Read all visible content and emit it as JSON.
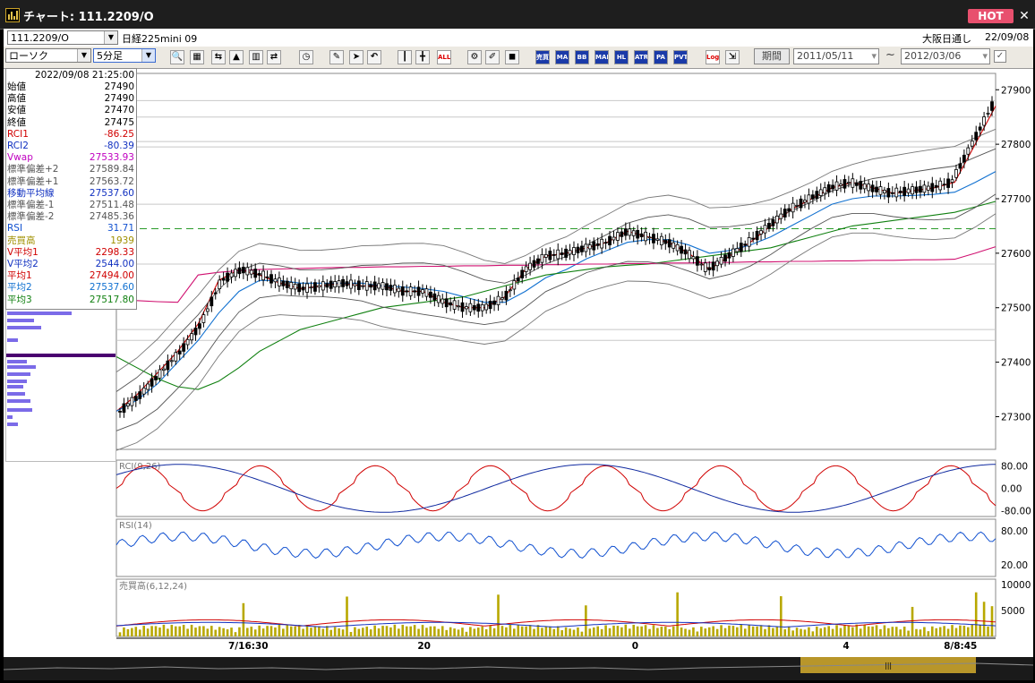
{
  "window": {
    "title": "チャート: 111.2209/O",
    "hot_label": "HOT",
    "close_icon": "close-icon"
  },
  "toolbar1": {
    "symbol_code": "111.2209/O",
    "symbol_name": "日経225mini 09",
    "session": "大阪日通し",
    "date": "22/09/08"
  },
  "toolbar2": {
    "chart_type": "ローソク",
    "interval": "5分足",
    "period_label": "期間",
    "date_from": "2011/05/11",
    "tilde": "~",
    "date_to": "2012/03/06",
    "buttons": [
      {
        "name": "zoom-icon"
      },
      {
        "name": "layout-icon"
      },
      {
        "name": "compare-icon",
        "label": ""
      },
      {
        "name": "chart-icon"
      },
      {
        "name": "bar-chart-icon"
      },
      {
        "name": "shuffle-icon"
      },
      {
        "name": "clock-icon"
      },
      {
        "name": "pencil-icon"
      },
      {
        "name": "cursor-icon"
      },
      {
        "name": "undo-icon"
      },
      {
        "name": "candle-icon"
      },
      {
        "name": "candle2-icon"
      },
      {
        "name": "all-icon",
        "label": "ALL"
      },
      {
        "name": "gear-icon"
      },
      {
        "name": "brush-icon"
      },
      {
        "name": "palette-icon"
      },
      {
        "name": "vol-icon",
        "label": "売買"
      },
      {
        "name": "ma-icon",
        "label": "MA"
      },
      {
        "name": "bb-icon",
        "label": "BB"
      },
      {
        "name": "mae-icon",
        "label": "MAE"
      },
      {
        "name": "hl-icon",
        "label": "HL"
      },
      {
        "name": "atr-icon",
        "label": "ATR"
      },
      {
        "name": "para-icon",
        "label": "PA RA"
      },
      {
        "name": "pvt-icon",
        "label": "PVT"
      },
      {
        "name": "log-icon",
        "label": "Log"
      },
      {
        "name": "export-icon"
      }
    ]
  },
  "info_panel": {
    "timestamp": "2022/09/08  21:25:00",
    "rows": [
      {
        "k": "始値",
        "v": "27490",
        "color": "#000000"
      },
      {
        "k": "高値",
        "v": "27490",
        "color": "#000000"
      },
      {
        "k": "安値",
        "v": "27470",
        "color": "#000000"
      },
      {
        "k": "終値",
        "v": "27475",
        "color": "#000000"
      },
      {
        "k": "RCI1",
        "v": "-86.25",
        "color": "#d00000"
      },
      {
        "k": "RCI2",
        "v": "-80.39",
        "color": "#1030c0"
      },
      {
        "k": "Vwap",
        "v": "27533.93",
        "color": "#c000c0"
      },
      {
        "k": "標準偏差+2",
        "v": "27589.84",
        "color": "#555555"
      },
      {
        "k": "標準偏差+1",
        "v": "27563.72",
        "color": "#555555"
      },
      {
        "k": "移動平均線",
        "v": "27537.60",
        "color": "#1030c0"
      },
      {
        "k": "標準偏差-1",
        "v": "27511.48",
        "color": "#555555"
      },
      {
        "k": "標準偏差-2",
        "v": "27485.36",
        "color": "#555555"
      },
      {
        "k": "RSI",
        "v": "31.71",
        "color": "#1050d0"
      },
      {
        "k": "売買高",
        "v": "1939",
        "color": "#a09000"
      },
      {
        "k": "V平均1",
        "v": "2298.33",
        "color": "#d00000"
      },
      {
        "k": "V平均2",
        "v": "2544.00",
        "color": "#1030c0"
      },
      {
        "k": "平均1",
        "v": "27494.00",
        "color": "#d00000"
      },
      {
        "k": "平均2",
        "v": "27537.60",
        "color": "#1070d0"
      },
      {
        "k": "平均3",
        "v": "27517.80",
        "color": "#108010"
      }
    ]
  },
  "chart_data": [
    {
      "type": "line",
      "title": "",
      "price_ticks": [
        "27900",
        "27800",
        "27700",
        "27600",
        "27500",
        "27400",
        "27300"
      ],
      "price_tick_values": [
        27900,
        27800,
        27700,
        27600,
        27500,
        27400,
        27300
      ],
      "ylim": [
        27240,
        27930
      ],
      "x_labels": [
        "7/16:30",
        "20",
        "0",
        "4",
        "8/8:45"
      ],
      "x_label_fractions": [
        0.15,
        0.35,
        0.59,
        0.83,
        0.96
      ],
      "dashed_level": 27645,
      "series": [
        {
          "color": "#d00000",
          "y": [
            27310,
            27340,
            27380,
            27420,
            27470,
            27550,
            27570,
            27560,
            27545,
            27535,
            27540,
            27545,
            27540,
            27540,
            27530,
            27530,
            27510,
            27500,
            27500,
            27520,
            27570,
            27595,
            27600,
            27610,
            27620,
            27640,
            27630,
            27620,
            27600,
            27570,
            27595,
            27620,
            27650,
            27680,
            27700,
            27720,
            27730,
            27720,
            27710,
            27715,
            27720,
            27730,
            27800,
            27870
          ]
        },
        {
          "color": "#1070d0",
          "y": [
            27310,
            27330,
            27360,
            27400,
            27440,
            27490,
            27530,
            27550,
            27550,
            27545,
            27545,
            27545,
            27545,
            27540,
            27538,
            27535,
            27530,
            27520,
            27510,
            27510,
            27530,
            27555,
            27570,
            27590,
            27605,
            27620,
            27625,
            27625,
            27615,
            27600,
            27605,
            27615,
            27630,
            27650,
            27670,
            27690,
            27700,
            27705,
            27705,
            27706,
            27708,
            27712,
            27730,
            27750
          ]
        },
        {
          "color": "#108010",
          "y": [
            27410,
            27390,
            27370,
            27355,
            27350,
            27365,
            27390,
            27420,
            27440,
            27460,
            27470,
            27480,
            27490,
            27500,
            27505,
            27510,
            27515,
            27520,
            27530,
            27540,
            27550,
            27560,
            27565,
            27570,
            27575,
            27578,
            27580,
            27585,
            27590,
            27595,
            27600,
            27605,
            27610,
            27620,
            27630,
            27640,
            27650,
            27655,
            27660,
            27665,
            27670,
            27675,
            27685,
            27695
          ]
        },
        {
          "color": "#d01070",
          "y": [
            27515,
            27513,
            27511,
            27510,
            27560,
            27565,
            27568,
            27570,
            27571,
            27572,
            27573,
            27574,
            27574,
            27575,
            27575,
            27576,
            27576,
            27577,
            27577,
            27578,
            27578,
            27579,
            27579,
            27580,
            27580,
            27581,
            27581,
            27582,
            27582,
            27583,
            27583,
            27584,
            27584,
            27585,
            27585,
            27586,
            27586,
            27587,
            27587,
            27588,
            27588,
            27589,
            27600,
            27612
          ]
        }
      ]
    },
    {
      "type": "line",
      "title": "RCI(9,26)",
      "ticks": [
        "80.00",
        "0.00",
        "-80.00"
      ],
      "tick_values": [
        80,
        0,
        -80
      ],
      "ylim": [
        -100,
        100
      ]
    },
    {
      "type": "line",
      "title": "RSI(14)",
      "ticks": [
        "80.00",
        "20.00"
      ],
      "tick_values": [
        80,
        20
      ],
      "ylim": [
        0,
        100
      ]
    },
    {
      "type": "bar",
      "title": "売買高(6,12,24)",
      "ticks": [
        "10000",
        "5000"
      ],
      "tick_values": [
        10000,
        5000
      ],
      "ylim": [
        0,
        11000
      ]
    }
  ]
}
